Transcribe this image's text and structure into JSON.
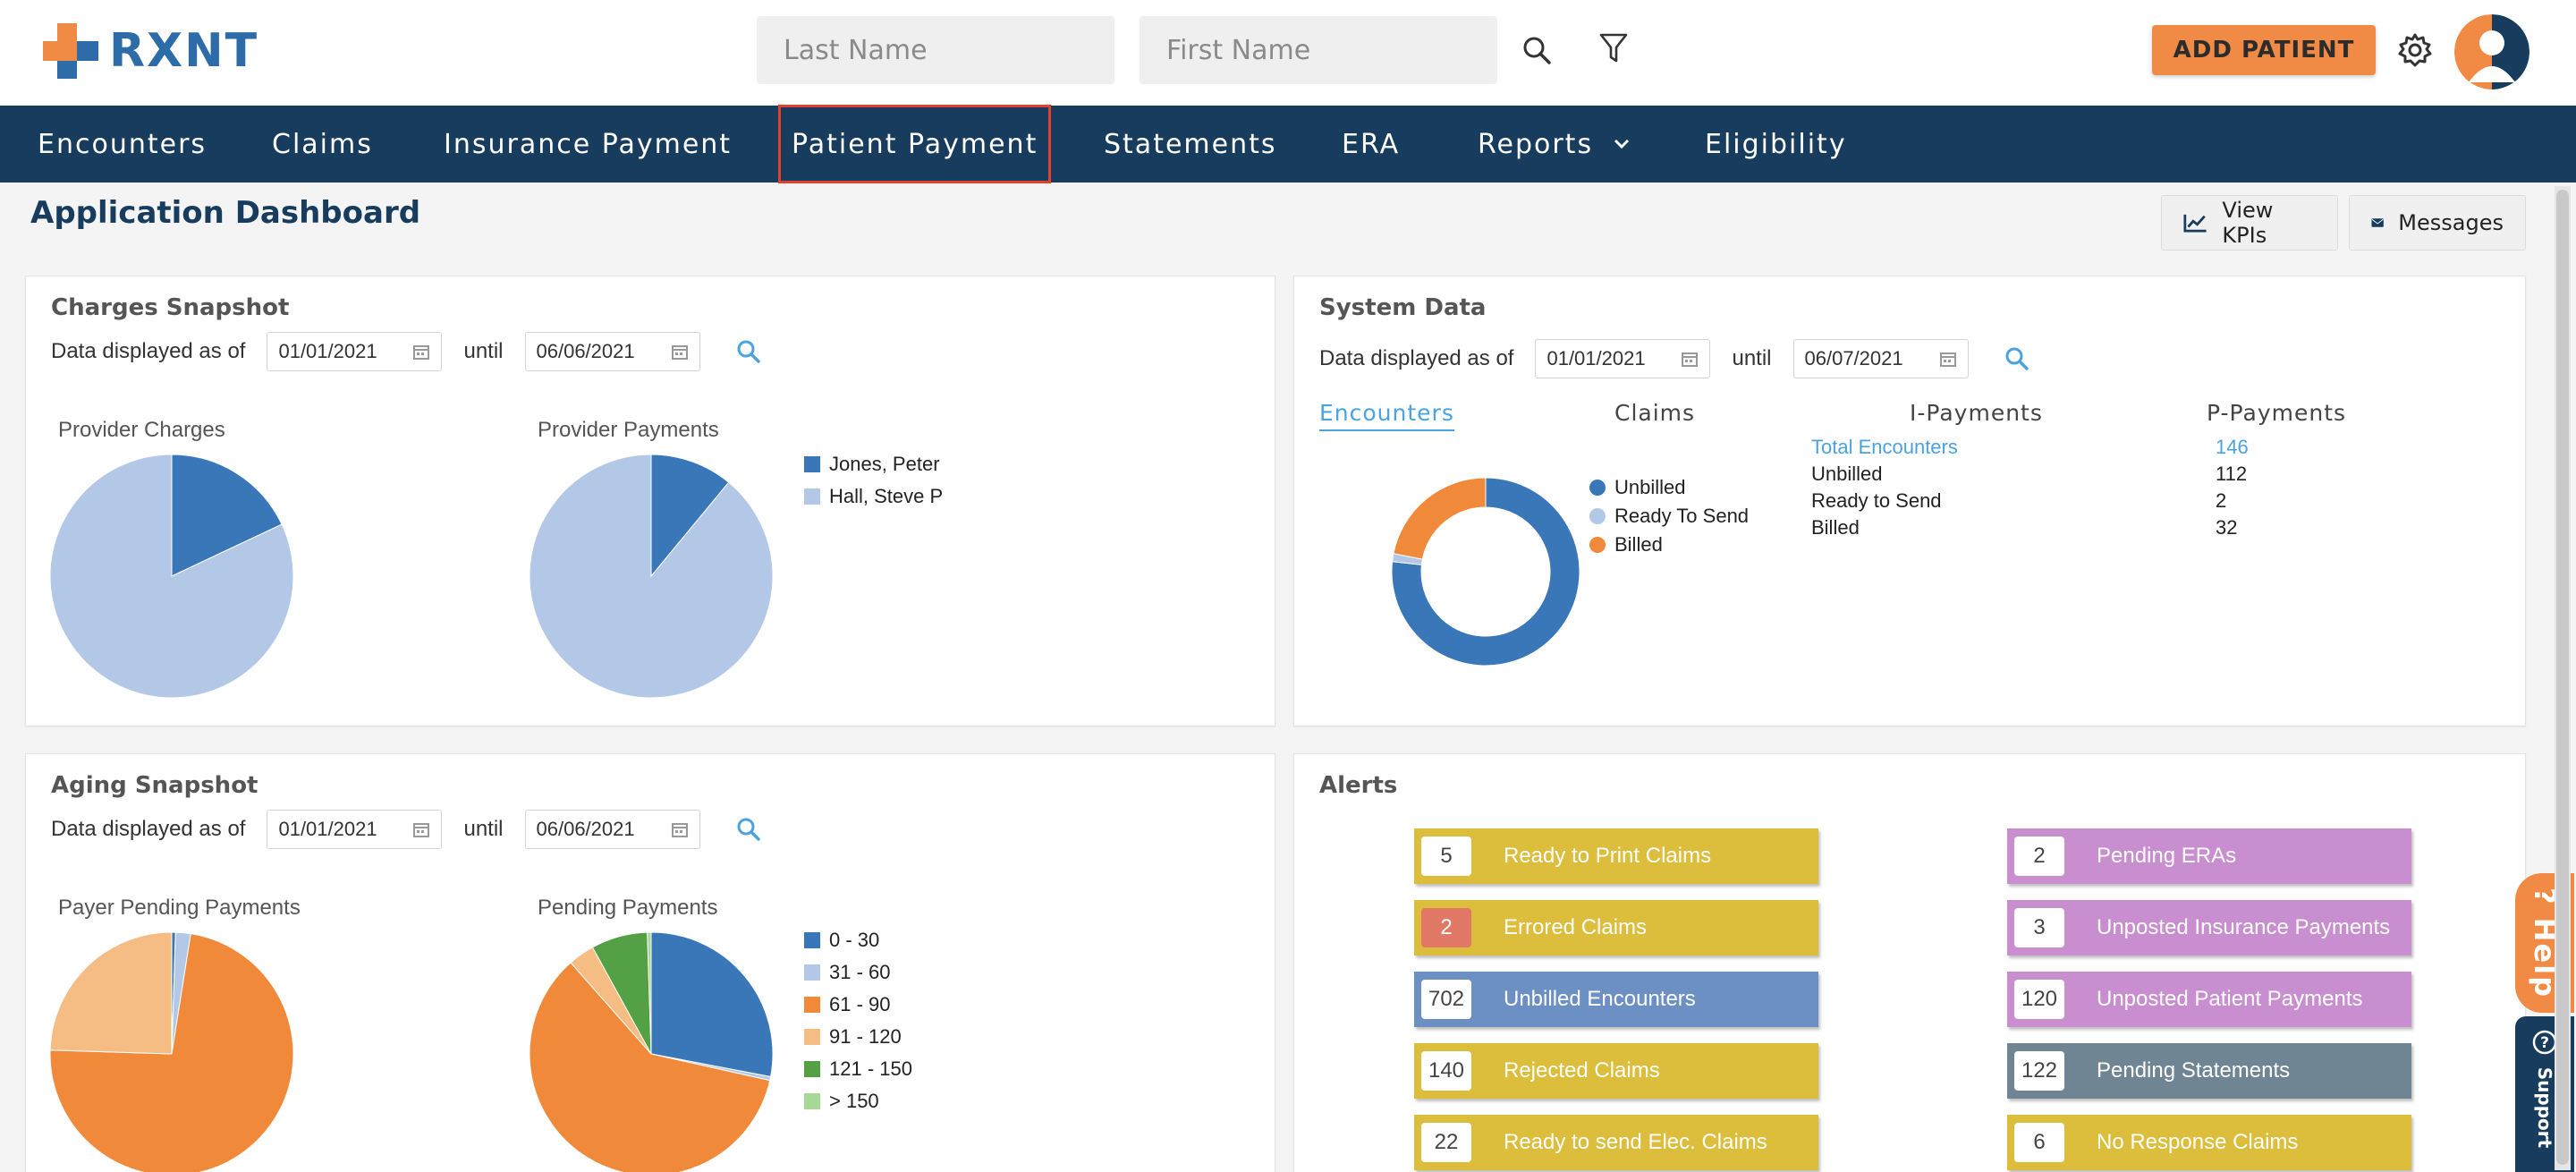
{
  "header": {
    "logo_text": "RXNT",
    "last_name_placeholder": "Last Name",
    "first_name_placeholder": "First Name",
    "add_patient_label": "ADD PATIENT"
  },
  "nav": {
    "items": [
      {
        "label": "Encounters"
      },
      {
        "label": "Claims"
      },
      {
        "label": "Insurance Payment"
      },
      {
        "label": "Patient Payment"
      },
      {
        "label": "Statements"
      },
      {
        "label": "ERA"
      },
      {
        "label": "Reports"
      },
      {
        "label": "Eligibility"
      }
    ],
    "active": "Patient Payment"
  },
  "page": {
    "title": "Application Dashboard",
    "view_kpis_label": "View KPIs",
    "messages_label": "Messages"
  },
  "charges": {
    "title": "Charges Snapshot",
    "date_label": "Data displayed as of",
    "from": "01/01/2021",
    "until_label": "until",
    "to": "06/06/2021",
    "chart1_label": "Provider Charges",
    "chart2_label": "Provider Payments",
    "legend": [
      {
        "name": "Jones, Peter",
        "color": "#3a77b8"
      },
      {
        "name": "Hall, Steve P",
        "color": "#b3c7e6"
      }
    ]
  },
  "system": {
    "title": "System Data",
    "date_label": "Data displayed as of",
    "from": "01/01/2021",
    "until_label": "until",
    "to": "06/07/2021",
    "tabs": [
      "Encounters",
      "Claims",
      "I-Payments",
      "P-Payments"
    ],
    "legend": [
      {
        "name": "Unbilled",
        "color": "#3a77b8"
      },
      {
        "name": "Ready To Send",
        "color": "#b3c7e6"
      },
      {
        "name": "Billed",
        "color": "#f08a3a"
      }
    ],
    "stats": [
      {
        "label": "Total Encounters",
        "value": "146"
      },
      {
        "label": "Unbilled",
        "value": "112"
      },
      {
        "label": "Ready to Send",
        "value": "2"
      },
      {
        "label": "Billed",
        "value": "32"
      }
    ]
  },
  "aging": {
    "title": "Aging Snapshot",
    "date_label": "Data displayed as of",
    "from": "01/01/2021",
    "until_label": "until",
    "to": "06/06/2021",
    "chart1_label": "Payer Pending Payments",
    "chart2_label": "Pending Payments",
    "legend": [
      {
        "name": "0 - 30",
        "color": "#3a77b8"
      },
      {
        "name": "31 - 60",
        "color": "#b3c7e6"
      },
      {
        "name": "61 - 90",
        "color": "#f08a3a"
      },
      {
        "name": "91 - 120",
        "color": "#f5bc83"
      },
      {
        "name": "121 - 150",
        "color": "#54a045"
      },
      {
        "name": "> 150",
        "color": "#a6d996"
      }
    ]
  },
  "alerts": {
    "title": "Alerts",
    "items": [
      {
        "count": "5",
        "label": "Ready to Print Claims",
        "color": "#dcbd3c"
      },
      {
        "count": "2",
        "label": "Pending ERAs",
        "color": "#c88ed0"
      },
      {
        "count": "2",
        "label": "Errored Claims",
        "color": "#dcbd3c",
        "count_color": "#e07865"
      },
      {
        "count": "3",
        "label": "Unposted Insurance Payments",
        "color": "#c88ed0"
      },
      {
        "count": "702",
        "label": "Unbilled Encounters",
        "color": "#6c8fc4"
      },
      {
        "count": "120",
        "label": "Unposted Patient Payments",
        "color": "#c88ed0"
      },
      {
        "count": "140",
        "label": "Rejected Claims",
        "color": "#dcbd3c"
      },
      {
        "count": "122",
        "label": "Pending Statements",
        "color": "#6f8593"
      },
      {
        "count": "22",
        "label": "Ready to send Elec. Claims",
        "color": "#dcbd3c"
      },
      {
        "count": "6",
        "label": "No Response Claims",
        "color": "#dcbd3c"
      }
    ]
  },
  "side_tabs": {
    "help_label": "? Help",
    "support_label": "Support"
  },
  "chart_data": [
    {
      "type": "pie",
      "title": "Provider Charges",
      "categories": [
        "Jones, Peter",
        "Hall, Steve P"
      ],
      "values": [
        18,
        82
      ]
    },
    {
      "type": "pie",
      "title": "Provider Payments",
      "categories": [
        "Jones, Peter",
        "Hall, Steve P"
      ],
      "values": [
        11,
        89
      ]
    },
    {
      "type": "pie",
      "title": "",
      "categories": [
        "Unbilled",
        "Ready To Send",
        "Billed"
      ],
      "values": [
        112,
        2,
        32
      ]
    },
    {
      "type": "pie",
      "title": "Payer Pending Payments",
      "categories": [
        "0 - 30",
        "31 - 60",
        "61 - 90",
        "91 - 120",
        "121 - 150",
        "> 150"
      ],
      "values": [
        0.5,
        2,
        73,
        24.5,
        0,
        0
      ]
    },
    {
      "type": "pie",
      "title": "Pending Payments",
      "categories": [
        "0 - 30",
        "31 - 60",
        "61 - 90",
        "91 - 120",
        "121 - 150",
        "> 150"
      ],
      "values": [
        28,
        0.5,
        60,
        3.5,
        7.5,
        0.5
      ]
    }
  ]
}
